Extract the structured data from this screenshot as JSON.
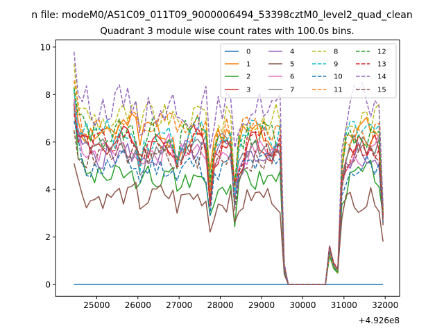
{
  "chart_data": {
    "type": "line",
    "suptitle": "n file: modeM0/AS1C09_011T09_9000006494_53398cztM0_level2_quad_clean",
    "title": "Quadrant 3 module wise count rates with 100.0s bins.",
    "xlabel": "",
    "ylabel": "",
    "x_offset_label": "+4.926e8",
    "xlim": [
      24000,
      32350
    ],
    "ylim": [
      -0.5,
      10.3
    ],
    "x_ticks": [
      25000,
      26000,
      27000,
      28000,
      29000,
      30000,
      31000,
      32000
    ],
    "x_tick_labels": [
      "25000",
      "26000",
      "27000",
      "28000",
      "29000",
      "30000",
      "31000",
      "32000"
    ],
    "y_ticks": [
      0,
      2,
      4,
      6,
      8,
      10
    ],
    "y_tick_labels": [
      "0",
      "2",
      "4",
      "6",
      "8",
      "10"
    ],
    "legend_position": "top-right",
    "legend_columns": 4,
    "x_segments": [
      {
        "start": 24450,
        "end": 29450,
        "step": 100
      },
      {
        "start": 29550,
        "end": 30550,
        "step": 100
      },
      {
        "start": 30650,
        "end": 31950,
        "step": 100
      }
    ],
    "gap_peak": 1.5,
    "series": [
      {
        "name": "0",
        "color": "#1f77b4",
        "dash": "solid",
        "base": 0.0,
        "first": 0.0,
        "end": 0.0,
        "amp": 0.0,
        "seed": 1
      },
      {
        "name": "1",
        "color": "#ff7f0e",
        "dash": "solid",
        "base": 6.5,
        "first": 8.1,
        "end": 3.0,
        "amp": 0.5,
        "seed": 2
      },
      {
        "name": "2",
        "color": "#2ca02c",
        "dash": "solid",
        "base": 4.5,
        "first": 7.7,
        "end": 2.9,
        "amp": 0.45,
        "seed": 3
      },
      {
        "name": "3",
        "color": "#d62728",
        "dash": "solid",
        "base": 6.0,
        "first": 7.6,
        "end": 2.9,
        "amp": 0.5,
        "seed": 4
      },
      {
        "name": "4",
        "color": "#9467bd",
        "dash": "solid",
        "base": 5.5,
        "first": 7.2,
        "end": 2.8,
        "amp": 0.45,
        "seed": 5
      },
      {
        "name": "5",
        "color": "#8c564b",
        "dash": "solid",
        "base": 3.7,
        "first": 5.1,
        "end": 1.8,
        "amp": 0.4,
        "seed": 6
      },
      {
        "name": "6",
        "color": "#e377c2",
        "dash": "solid",
        "base": 5.7,
        "first": 7.8,
        "end": 2.7,
        "amp": 0.45,
        "seed": 7
      },
      {
        "name": "7",
        "color": "#7f7f7f",
        "dash": "solid",
        "base": 5.8,
        "first": 7.4,
        "end": 2.8,
        "amp": 0.45,
        "seed": 8
      },
      {
        "name": "8",
        "color": "#bcbd22",
        "dash": "dashed",
        "base": 7.0,
        "first": 9.3,
        "end": 3.2,
        "amp": 0.55,
        "seed": 9
      },
      {
        "name": "9",
        "color": "#17becf",
        "dash": "dashed",
        "base": 6.3,
        "first": 8.2,
        "end": 3.0,
        "amp": 0.5,
        "seed": 10
      },
      {
        "name": "10",
        "color": "#1f77b4",
        "dash": "dashed",
        "base": 5.0,
        "first": 6.9,
        "end": 2.6,
        "amp": 0.45,
        "seed": 11
      },
      {
        "name": "11",
        "color": "#ff7f0e",
        "dash": "dashed",
        "base": 6.6,
        "first": 8.6,
        "end": 3.1,
        "amp": 0.5,
        "seed": 12
      },
      {
        "name": "12",
        "color": "#2ca02c",
        "dash": "dashed",
        "base": 6.4,
        "first": 8.3,
        "end": 3.0,
        "amp": 0.5,
        "seed": 13
      },
      {
        "name": "13",
        "color": "#d62728",
        "dash": "dashed",
        "base": 5.9,
        "first": 7.2,
        "end": 2.8,
        "amp": 0.45,
        "seed": 14
      },
      {
        "name": "14",
        "color": "#9467bd",
        "dash": "dashed",
        "base": 7.6,
        "first": 9.8,
        "end": 3.3,
        "amp": 0.6,
        "seed": 15
      },
      {
        "name": "15",
        "color": "#8c564b",
        "dash": "dashed",
        "base": 5.4,
        "first": 6.5,
        "end": 2.5,
        "amp": 0.45,
        "seed": 16
      }
    ]
  }
}
